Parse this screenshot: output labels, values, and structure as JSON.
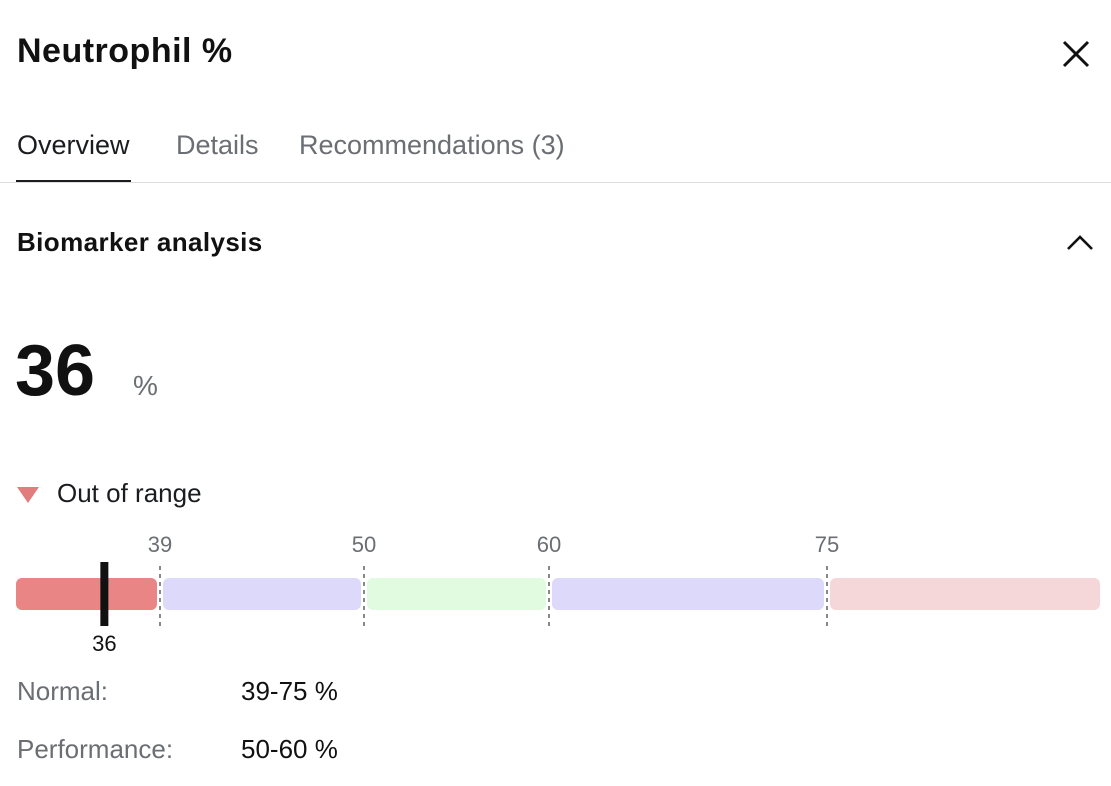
{
  "header": {
    "title": "Neutrophil %"
  },
  "tabs": {
    "items": [
      "Overview",
      "Details",
      "Recommendations (3)"
    ],
    "active": 0
  },
  "section": {
    "title": "Biomarker analysis"
  },
  "result": {
    "value": 36,
    "unit": "%",
    "status": "Out of range",
    "status_color": "#e27d7d"
  },
  "range_bar": {
    "thresholds": [
      39,
      50,
      60,
      75
    ],
    "colors": [
      "#e98585",
      "#dcd9fa",
      "#e0fbe0",
      "#dcd9fa",
      "#f6d7d9"
    ]
  },
  "ranges": [
    {
      "label": "Normal:",
      "value": "39-75 %"
    },
    {
      "label": "Performance:",
      "value": "50-60 %"
    }
  ]
}
